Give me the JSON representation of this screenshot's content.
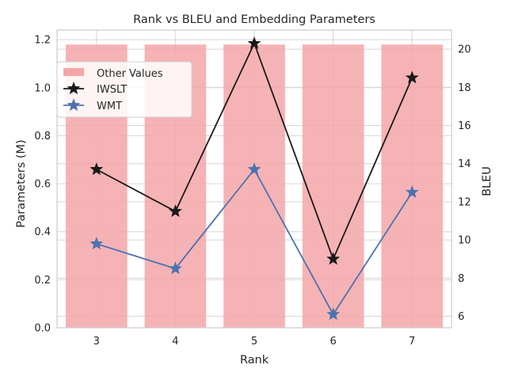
{
  "chart_data": {
    "type": "bar",
    "title": "Rank vs BLEU and Embedding Parameters",
    "xlabel": "Rank",
    "ylabel_left": "Parameters (M)",
    "ylabel_right": "BLEU",
    "categories": [
      "3",
      "4",
      "5",
      "6",
      "7"
    ],
    "ylim_left": [
      0,
      1.24
    ],
    "ylim_right": [
      5.4,
      21.0
    ],
    "yticks_left": [
      "0.0",
      "0.2",
      "0.4",
      "0.6",
      "0.8",
      "1.0",
      "1.2"
    ],
    "yticks_right": [
      "6",
      "8",
      "10",
      "12",
      "14",
      "16",
      "18",
      "20"
    ],
    "grid": true,
    "legend_position": "upper-left",
    "bars": {
      "name": "Other Values",
      "axis": "left",
      "color": "#f4a6a8",
      "values": [
        1.18,
        1.18,
        1.18,
        1.18,
        1.18
      ]
    },
    "series": [
      {
        "name": "IWSLT",
        "axis": "right",
        "color": "#1a1a1a",
        "marker": "star",
        "values": [
          13.7,
          11.5,
          20.3,
          9.0,
          18.5
        ]
      },
      {
        "name": "WMT",
        "axis": "right",
        "color": "#4c72b0",
        "marker": "star",
        "values": [
          9.8,
          8.5,
          13.7,
          6.1,
          12.5
        ]
      }
    ]
  }
}
